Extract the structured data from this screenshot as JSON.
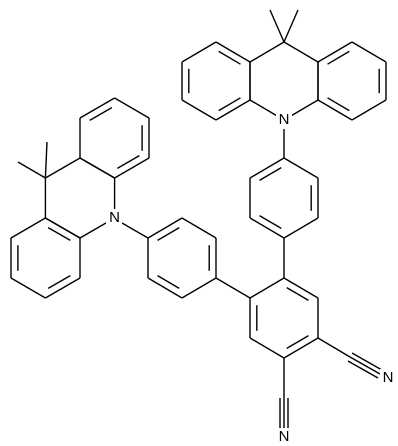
{
  "atom_labels": [
    "N",
    "N",
    "N",
    "N"
  ]
}
